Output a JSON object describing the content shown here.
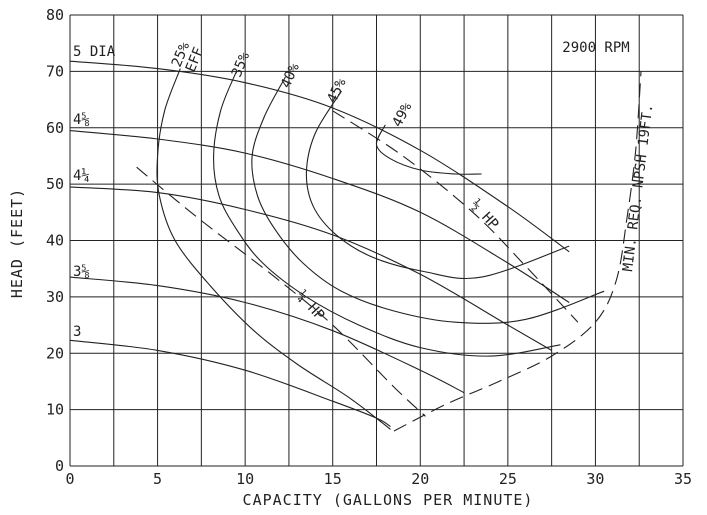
{
  "chart_data": {
    "type": "line",
    "title": "",
    "speed_label": "2900 RPM",
    "xlabel": "CAPACITY (GALLONS PER MINUTE)",
    "ylabel": "HEAD (FEET)",
    "xlim": [
      0,
      35
    ],
    "ylim": [
      0,
      80
    ],
    "xticks": [
      0,
      5,
      10,
      15,
      20,
      25,
      30,
      35
    ],
    "yticks": [
      0,
      10,
      20,
      30,
      40,
      50,
      60,
      70,
      80
    ],
    "grid": true,
    "impeller_curves": [
      {
        "name": "5 DIA",
        "points": [
          [
            0,
            71.8
          ],
          [
            5,
            70.5
          ],
          [
            10,
            68
          ],
          [
            15,
            63.5
          ],
          [
            20,
            56
          ],
          [
            25,
            46
          ],
          [
            28.5,
            38
          ]
        ]
      },
      {
        "name": "4⅝",
        "points": [
          [
            0,
            59.5
          ],
          [
            5,
            58
          ],
          [
            10,
            55.5
          ],
          [
            15,
            51
          ],
          [
            20,
            45
          ],
          [
            25,
            36
          ],
          [
            28.5,
            29
          ]
        ]
      },
      {
        "name": "4¼",
        "points": [
          [
            0,
            49.5
          ],
          [
            5,
            48.5
          ],
          [
            10,
            45.5
          ],
          [
            15,
            41
          ],
          [
            20,
            34
          ],
          [
            25,
            25
          ],
          [
            27.5,
            20.5
          ]
        ]
      },
      {
        "name": "3⅝",
        "points": [
          [
            0,
            33.5
          ],
          [
            5,
            32
          ],
          [
            10,
            29
          ],
          [
            15,
            24
          ],
          [
            20,
            17
          ],
          [
            22.5,
            13
          ]
        ]
      },
      {
        "name": "3",
        "points": [
          [
            0,
            22.3
          ],
          [
            5,
            20.5
          ],
          [
            10,
            17
          ],
          [
            15,
            11.5
          ],
          [
            17.5,
            8.5
          ],
          [
            18.3,
            7
          ]
        ]
      }
    ],
    "efficiency_curves": [
      {
        "name": "25%",
        "points": [
          [
            6.3,
            70.5
          ],
          [
            5.4,
            63
          ],
          [
            5,
            55
          ],
          [
            5.1,
            48
          ],
          [
            6,
            40
          ],
          [
            8,
            32
          ],
          [
            10.5,
            24
          ],
          [
            13,
            18
          ],
          [
            16,
            12
          ],
          [
            18.3,
            6.5
          ]
        ]
      },
      {
        "name": "35%",
        "points": [
          [
            9.5,
            70
          ],
          [
            8.6,
            63
          ],
          [
            8.2,
            55
          ],
          [
            8.5,
            48
          ],
          [
            9.5,
            42
          ],
          [
            11,
            36
          ],
          [
            13.5,
            30
          ],
          [
            16.5,
            25
          ],
          [
            20,
            21
          ],
          [
            24,
            19.5
          ],
          [
            28,
            21.5
          ]
        ]
      },
      {
        "name": "40%",
        "points": [
          [
            12.3,
            69
          ],
          [
            11.1,
            62
          ],
          [
            10.4,
            55
          ],
          [
            10.7,
            48
          ],
          [
            11.7,
            42
          ],
          [
            13.3,
            36
          ],
          [
            15.5,
            31
          ],
          [
            18.5,
            27.5
          ],
          [
            22,
            25.5
          ],
          [
            26,
            26
          ],
          [
            30.5,
            31
          ]
        ]
      },
      {
        "name": "45%",
        "points": [
          [
            15.5,
            66.5
          ],
          [
            14,
            59
          ],
          [
            13.5,
            52
          ],
          [
            13.9,
            46
          ],
          [
            15.2,
            41
          ],
          [
            17.3,
            37
          ],
          [
            20.2,
            34.5
          ],
          [
            23.5,
            33.5
          ],
          [
            28.5,
            39
          ]
        ]
      },
      {
        "name": "49%",
        "points": [
          [
            18,
            60.5
          ],
          [
            17.5,
            57
          ],
          [
            18.3,
            54.5
          ],
          [
            20,
            52.5
          ],
          [
            22,
            51.8
          ],
          [
            23.5,
            51.8
          ]
        ]
      }
    ],
    "power_lines": [
      {
        "name": "¼ HP",
        "points": [
          [
            3.8,
            53
          ],
          [
            7.3,
            44
          ],
          [
            11.5,
            34
          ],
          [
            15,
            25
          ],
          [
            18.5,
            14
          ],
          [
            20.3,
            8.8
          ]
        ]
      },
      {
        "name": "½ HP",
        "points": [
          [
            15,
            63
          ],
          [
            19,
            55
          ],
          [
            23,
            45
          ],
          [
            26,
            35.5
          ],
          [
            29,
            25.5
          ]
        ]
      }
    ],
    "npsh_curve": {
      "name": "MIN. REQ. NPSH 19FT.",
      "points": [
        [
          18.5,
          6.2
        ],
        [
          21.5,
          11
        ],
        [
          24.5,
          15
        ],
        [
          27.5,
          19.5
        ],
        [
          30,
          25.5
        ],
        [
          31.2,
          33
        ],
        [
          31.8,
          44
        ],
        [
          32.3,
          56
        ],
        [
          32.6,
          70
        ]
      ]
    },
    "efficiency_labels": [
      "25%",
      "EFF",
      "35%",
      "40%",
      "45%",
      "49%"
    ],
    "power_labels": [
      "¼ HP",
      "½ HP"
    ],
    "diameter_labels": [
      "5 DIA",
      "4⅝",
      "4¼",
      "3⅝",
      "3"
    ],
    "npsh_label": "MIN. REQ. NPSH 19FT."
  }
}
